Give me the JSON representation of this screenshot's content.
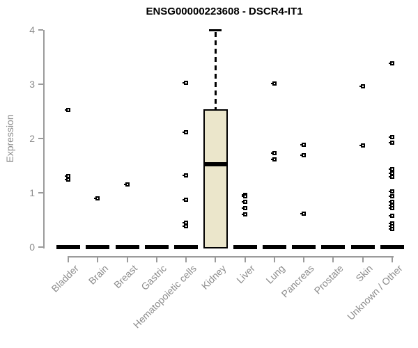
{
  "chart_data": {
    "type": "boxplot",
    "title": "ENSG00000223608 - DSCR4-IT1",
    "ylabel": "Expression",
    "xlabel": "",
    "ylim": [
      0,
      4
    ],
    "yticks": [
      "0",
      "1",
      "2",
      "3",
      "4"
    ],
    "grid": false,
    "legend": "none",
    "categories": [
      "Bladder",
      "Brain",
      "Breast",
      "Gastric",
      "Hematopoietic cells",
      "Kidney",
      "Liver",
      "Lung",
      "Pancreas",
      "Prostate",
      "Skin",
      "Unknown / Other"
    ],
    "boxes": [
      {
        "category": "Bladder",
        "q1": 0,
        "median": 0,
        "q3": 0,
        "whisker_low": 0,
        "whisker_high": 0,
        "outliers": [
          2.53,
          1.31,
          1.24
        ]
      },
      {
        "category": "Brain",
        "q1": 0,
        "median": 0,
        "q3": 0,
        "whisker_low": 0,
        "whisker_high": 0,
        "outliers": [
          0.9
        ]
      },
      {
        "category": "Breast",
        "q1": 0,
        "median": 0,
        "q3": 0,
        "whisker_low": 0,
        "whisker_high": 0,
        "outliers": [
          1.15
        ]
      },
      {
        "category": "Gastric",
        "q1": 0,
        "median": 0,
        "q3": 0,
        "whisker_low": 0,
        "whisker_high": 0,
        "outliers": []
      },
      {
        "category": "Hematopoietic cells",
        "q1": 0,
        "median": 0,
        "q3": 0,
        "whisker_low": 0,
        "whisker_high": 0,
        "outliers": [
          3.03,
          2.12,
          1.32,
          0.87,
          0.45,
          0.38
        ]
      },
      {
        "category": "Kidney",
        "q1": 0,
        "median": 1.52,
        "q3": 2.54,
        "whisker_low": 0,
        "whisker_high": 4.0,
        "outliers": []
      },
      {
        "category": "Liver",
        "q1": 0,
        "median": 0,
        "q3": 0,
        "whisker_low": 0,
        "whisker_high": 0,
        "outliers": [
          0.96,
          0.94,
          0.83,
          0.72,
          0.6
        ]
      },
      {
        "category": "Lung",
        "q1": 0,
        "median": 0,
        "q3": 0,
        "whisker_low": 0,
        "whisker_high": 0,
        "outliers": [
          3.01,
          1.73,
          1.61
        ]
      },
      {
        "category": "Pancreas",
        "q1": 0,
        "median": 0,
        "q3": 0,
        "whisker_low": 0,
        "whisker_high": 0,
        "outliers": [
          1.88,
          1.69,
          0.61
        ]
      },
      {
        "category": "Prostate",
        "q1": 0,
        "median": 0,
        "q3": 0,
        "whisker_low": 0,
        "whisker_high": 0,
        "outliers": []
      },
      {
        "category": "Skin",
        "q1": 0,
        "median": 0,
        "q3": 0,
        "whisker_low": 0,
        "whisker_high": 0,
        "outliers": [
          2.96,
          1.87
        ]
      },
      {
        "category": "Unknown / Other",
        "q1": 0,
        "median": 0,
        "q3": 0,
        "whisker_low": 0,
        "whisker_high": 0,
        "outliers": [
          3.39,
          2.03,
          1.92,
          1.43,
          1.36,
          1.3,
          1.02,
          0.94,
          0.83,
          0.77,
          0.72,
          0.58,
          0.44,
          0.38,
          0.33
        ]
      }
    ],
    "colors": {
      "box_fill": "#ebe6cb",
      "box_border": "#000000",
      "median": "#000000",
      "axis": "#9b9b9b",
      "tick_text": "#8c8c8c",
      "title_text": "#000000",
      "outlier": "#000000",
      "background": "#ffffff"
    }
  }
}
